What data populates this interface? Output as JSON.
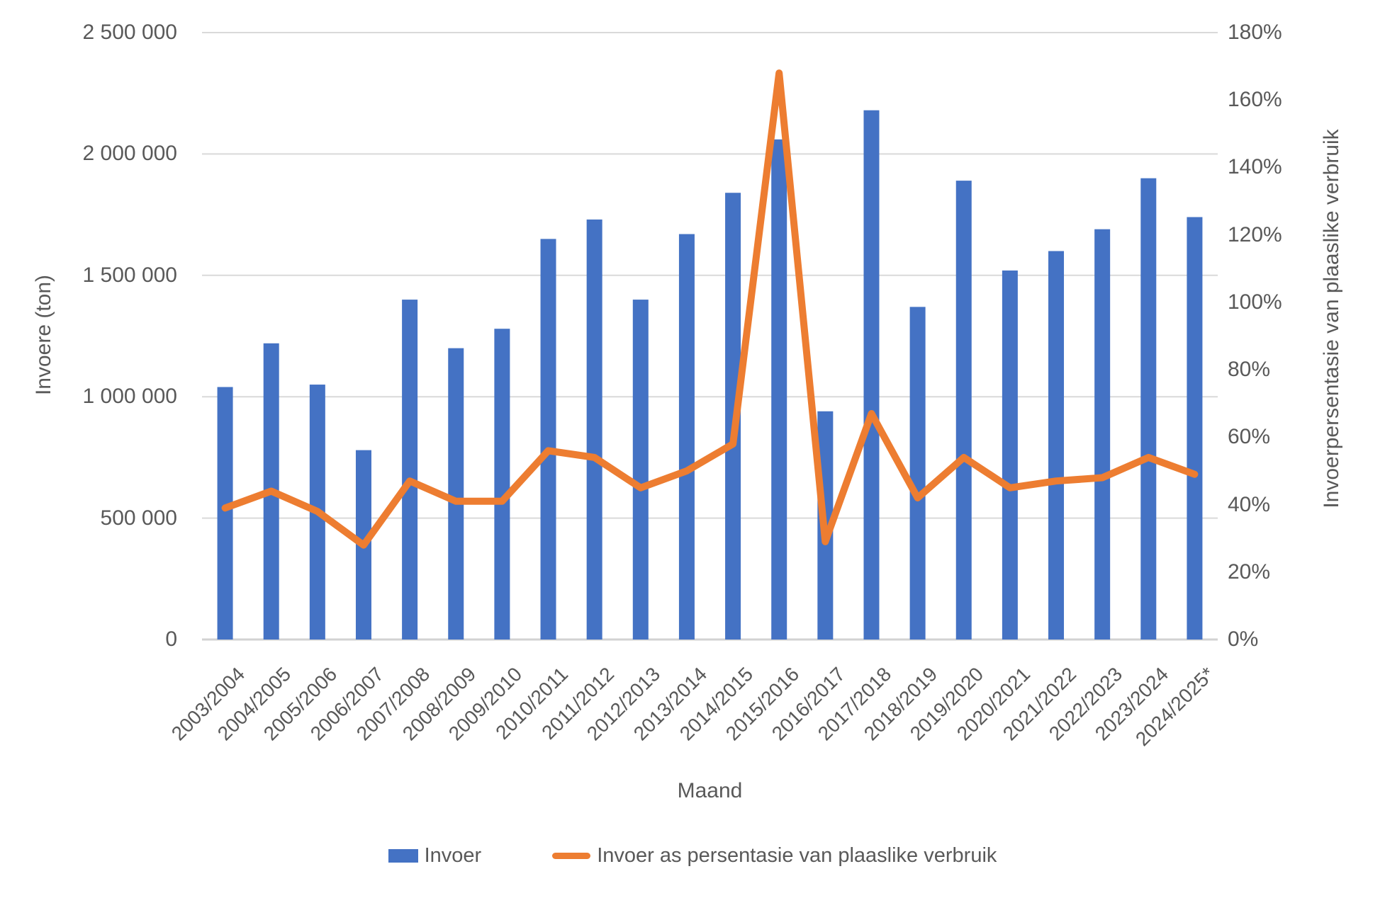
{
  "chart_data": {
    "type": "combo",
    "categories": [
      "2003/2004",
      "2004/2005",
      "2005/2006",
      "2006/2007",
      "2007/2008",
      "2008/2009",
      "2009/2010",
      "2010/2011",
      "2011/2012",
      "2012/2013",
      "2013/2014",
      "2014/2015",
      "2015/2016",
      "2016/2017",
      "2017/2018",
      "2018/2019",
      "2019/2020",
      "2020/2021",
      "2021/2022",
      "2022/2023",
      "2023/2024",
      "2024/2025*"
    ],
    "series": [
      {
        "name": "Invoer",
        "type": "bar",
        "axis": "left",
        "color": "#4472C4",
        "values": [
          1040000,
          1220000,
          1050000,
          780000,
          1400000,
          1200000,
          1280000,
          1650000,
          1730000,
          1400000,
          1670000,
          1840000,
          2060000,
          940000,
          2180000,
          1370000,
          1890000,
          1520000,
          1600000,
          1690000,
          1900000,
          1740000
        ]
      },
      {
        "name": "Invoer as persentasie van plaaslike verbruik",
        "type": "line",
        "axis": "right",
        "color": "#ED7D31",
        "values_percent": [
          39,
          44,
          38,
          28,
          47,
          41,
          41,
          56,
          54,
          45,
          50,
          58,
          168,
          29,
          67,
          42,
          54,
          45,
          47,
          48,
          54,
          49
        ]
      }
    ],
    "left_axis": {
      "title": "Invoere (ton)",
      "min": 0,
      "max": 2500000,
      "tick_values": [
        0,
        500000,
        1000000,
        1500000,
        2000000,
        2500000
      ],
      "tick_labels": [
        "0",
        "500 000",
        "1 000 000",
        "1 500 000",
        "2 000 000",
        "2 500 000"
      ]
    },
    "right_axis": {
      "title": "Invoerpersentasie van plaaslike verbruik",
      "min": 0,
      "max": 180,
      "tick_values": [
        0,
        20,
        40,
        60,
        80,
        100,
        120,
        140,
        160,
        180
      ],
      "tick_labels": [
        "0%",
        "20%",
        "40%",
        "60%",
        "80%",
        "100%",
        "120%",
        "140%",
        "160%",
        "180%"
      ]
    },
    "x_axis": {
      "title": "Maand"
    },
    "legend": {
      "position": "bottom",
      "items": [
        "Invoer",
        "Invoer as persentasie van plaaslike verbruik"
      ]
    },
    "grid": true,
    "colors": {
      "bar": "#4472C4",
      "line": "#ED7D31",
      "gridline": "#D9D9D9",
      "axis_line": "#D2D2D2",
      "text": "#595959",
      "background": "#FFFFFF"
    }
  }
}
